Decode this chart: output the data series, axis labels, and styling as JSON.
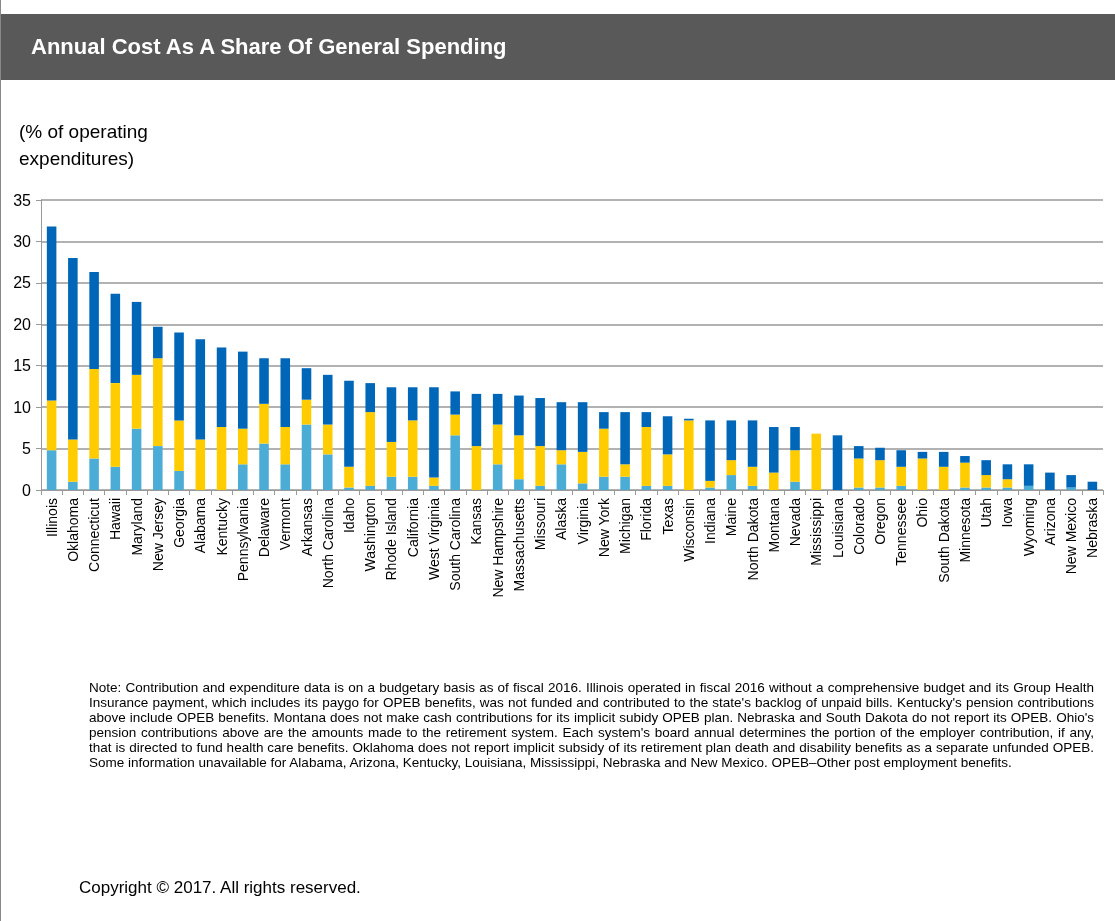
{
  "chart_data": {
    "type": "bar",
    "title": "Annual Cost As A Share Of General Spending",
    "ylabel": "(% of operating expenditures)",
    "stacked": true,
    "grid": "y",
    "categories": [
      "Illinois",
      "Oklahoma",
      "Connecticut",
      "Hawaii",
      "Maryland",
      "New Jersey",
      "Georgia",
      "Alabama",
      "Kentucky",
      "Pennsylvania",
      "Delaware",
      "Vermont",
      "Arkansas",
      "North Carolina",
      "Idaho",
      "Washington",
      "Rhode Island",
      "California",
      "West Virginia",
      "South Carolina",
      "Kansas",
      "New Hampshire",
      "Massachusetts",
      "Missouri",
      "Alaska",
      "Virginia",
      "New York",
      "Michigan",
      "Florida",
      "Texas",
      "Wisconsin",
      "Indiana",
      "Maine",
      "North Dakota",
      "Montana",
      "Nevada",
      "Mississippi",
      "Louisiana",
      "Colorado",
      "Oregon",
      "Tennessee",
      "Ohio",
      "South Dakota",
      "Minnesota",
      "Utah",
      "Iowa",
      "Wyoming",
      "Arizona",
      "New Mexico",
      "Nebraska"
    ],
    "series": [
      {
        "color": "#4bacd6",
        "values": [
          4.8,
          1.0,
          3.8,
          2.8,
          7.4,
          5.3,
          2.3,
          0,
          0,
          3.1,
          5.6,
          3.1,
          7.9,
          4.3,
          0.3,
          0.5,
          1.6,
          1.6,
          0.5,
          6.6,
          0,
          3.1,
          1.3,
          0.5,
          3.1,
          0.8,
          1.6,
          1.6,
          0.5,
          0.5,
          0,
          0.3,
          1.8,
          0.5,
          0,
          1.0,
          0,
          0,
          0.3,
          0.3,
          0.5,
          0,
          0,
          0.3,
          0.3,
          0.3,
          0.5,
          0,
          0.3,
          0
        ]
      },
      {
        "color": "#ffcc00",
        "values": [
          6.0,
          5.1,
          10.8,
          10.1,
          6.5,
          10.6,
          6.1,
          6.1,
          7.6,
          4.3,
          4.8,
          4.5,
          3.0,
          3.6,
          2.5,
          8.9,
          4.2,
          6.8,
          1.0,
          2.5,
          5.3,
          4.8,
          5.3,
          4.8,
          1.7,
          3.8,
          5.8,
          1.5,
          7.1,
          3.8,
          8.4,
          0.8,
          1.8,
          2.3,
          2.1,
          3.8,
          6.8,
          0,
          3.5,
          3.3,
          2.3,
          3.8,
          2.8,
          3.0,
          1.5,
          1.0,
          0,
          0,
          0,
          0
        ]
      },
      {
        "color": "#0066b8",
        "values": [
          21.0,
          21.9,
          11.7,
          10.8,
          8.8,
          3.8,
          10.6,
          12.1,
          9.6,
          9.3,
          5.5,
          8.3,
          3.8,
          6.0,
          10.4,
          3.5,
          6.6,
          4.0,
          10.9,
          2.8,
          6.3,
          3.7,
          4.8,
          5.8,
          5.8,
          6.0,
          2.0,
          6.3,
          1.8,
          4.6,
          0.2,
          7.3,
          4.8,
          5.6,
          5.5,
          2.8,
          0,
          6.6,
          1.5,
          1.5,
          2.0,
          0.8,
          1.8,
          0.8,
          1.8,
          1.8,
          2.6,
          2.1,
          1.5,
          1.0
        ]
      }
    ],
    "ylim": [
      0,
      35
    ],
    "yticks": [
      0,
      5,
      10,
      15,
      20,
      25,
      30,
      35
    ],
    "annotations": [
      "Note: Contribution and expenditure data is on a budgetary basis as of fiscal 2016.  Illinois operated in fiscal 2016 without a comprehensive budget and its Group Health Insurance payment, which includes its paygo for OPEB benefits, was not funded and contributed to the state's backlog of unpaid bills. Kentucky's pension contributions above include OPEB benefits. Montana does not make cash contributions for its implicit subidy OPEB plan. Nebraska and South Dakota do not report its OPEB. Ohio's pension contributions above are the amounts made to the retirement system. Each system's board annual determines the portion of the employer contribution, if any, that is directed to fund health care benefits. Oklahoma does not report implicit subsidy of its retirement plan death and disability benefits as a separate unfunded OPEB. Some information unavailable for Alabama, Arizona, Kentucky, Louisiana, Mississippi, Nebraska and New Mexico. OPEB–Other post employment benefits.",
      "Copyright © 2017. All rights reserved."
    ]
  }
}
